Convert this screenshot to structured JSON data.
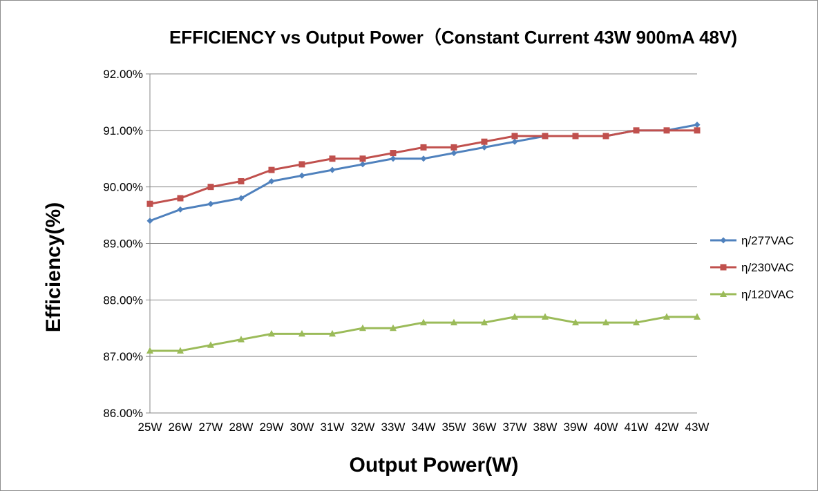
{
  "chart_data": {
    "type": "line",
    "title": "EFFICIENCY vs Output Power（Constant Current 43W 900mA 48V)",
    "xlabel": "Output Power(W)",
    "ylabel": "Efficiency(%)",
    "ylim": [
      86.0,
      92.0
    ],
    "y_ticks": [
      "86.00%",
      "87.00%",
      "88.00%",
      "89.00%",
      "90.00%",
      "91.00%",
      "92.00%"
    ],
    "categories": [
      "25W",
      "26W",
      "27W",
      "28W",
      "29W",
      "30W",
      "31W",
      "32W",
      "33W",
      "34W",
      "35W",
      "36W",
      "37W",
      "38W",
      "39W",
      "40W",
      "41W",
      "42W",
      "43W"
    ],
    "grid": true,
    "legend_position": "right",
    "series": [
      {
        "name": "η/277VAC",
        "color": "#4f81bd",
        "marker": "diamond",
        "values": [
          89.4,
          89.6,
          89.7,
          89.8,
          90.1,
          90.2,
          90.3,
          90.4,
          90.5,
          90.5,
          90.6,
          90.7,
          90.8,
          90.9,
          90.9,
          90.9,
          91.0,
          91.0,
          91.1
        ]
      },
      {
        "name": "η/230VAC",
        "color": "#c0504d",
        "marker": "square",
        "values": [
          89.7,
          89.8,
          90.0,
          90.1,
          90.3,
          90.4,
          90.5,
          90.5,
          90.6,
          90.7,
          90.7,
          90.8,
          90.9,
          90.9,
          90.9,
          90.9,
          91.0,
          91.0,
          91.0
        ]
      },
      {
        "name": "η/120VAC",
        "color": "#9bbb59",
        "marker": "triangle",
        "values": [
          87.1,
          87.1,
          87.2,
          87.3,
          87.4,
          87.4,
          87.4,
          87.5,
          87.5,
          87.6,
          87.6,
          87.6,
          87.7,
          87.7,
          87.6,
          87.6,
          87.6,
          87.7,
          87.7
        ]
      }
    ]
  }
}
